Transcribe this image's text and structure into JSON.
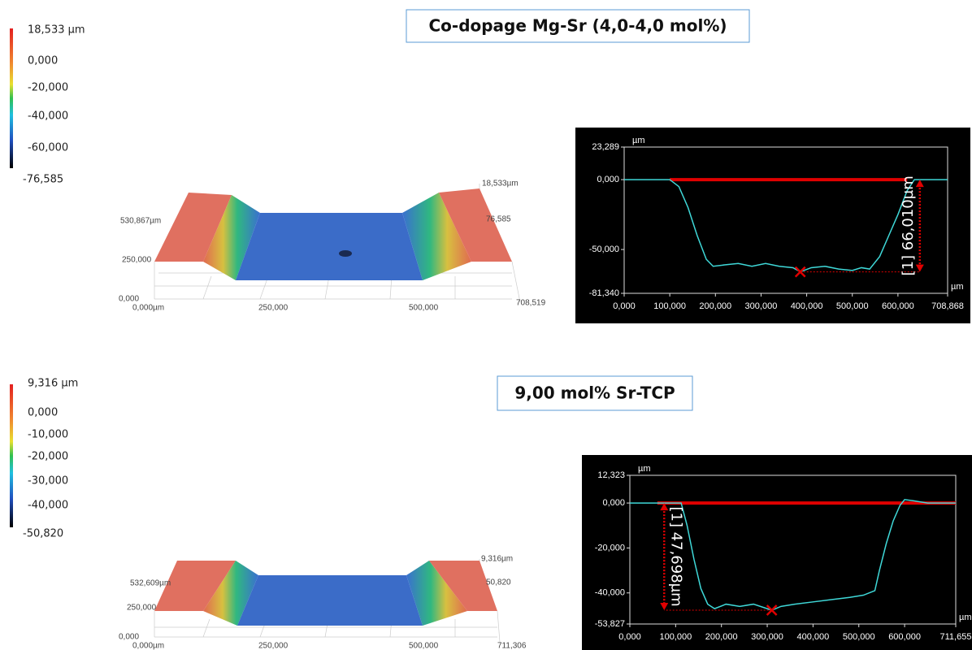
{
  "panels": [
    {
      "title": "Co-dopage Mg-Sr (4,0-4,0 mol%)",
      "colorbar": [
        "18,533 µm",
        "0,000",
        "-20,000",
        "-40,000",
        "-60,000",
        "-76,585"
      ],
      "surface": [
        "18,533µm",
        "76,585",
        "530,867µm",
        "250,000",
        "0,000",
        "0,000µm",
        "250,000",
        "500,000",
        "708,519"
      ]
    },
    {
      "title": "9,00 mol% Sr-TCP",
      "colorbar": [
        "9,316 µm",
        "0,000",
        "-10,000",
        "-20,000",
        "-30,000",
        "-40,000",
        "-50,820"
      ],
      "surface": [
        "9,316µm",
        "50,820",
        "532,609µm",
        "250,000",
        "0,000",
        "0,000µm",
        "250,000",
        "500,000",
        "711,306"
      ]
    }
  ],
  "chart_data": [
    {
      "type": "line",
      "x_unit": "µm",
      "y_unit": "µm",
      "x": [
        0,
        50,
        100,
        120,
        140,
        160,
        180,
        195,
        220,
        250,
        280,
        310,
        340,
        370,
        386,
        410,
        440,
        470,
        500,
        520,
        538,
        560,
        580,
        600,
        620,
        636,
        660,
        708.868
      ],
      "series": [
        {
          "color": "#3fd8d8",
          "values": [
            0,
            0,
            0,
            -5,
            -20,
            -40,
            -57,
            -62,
            -61,
            -60,
            -62,
            -60,
            -62,
            -63,
            -66,
            -63,
            -62,
            -64,
            -65,
            -63,
            -64,
            -55,
            -40,
            -25,
            -8,
            0,
            0,
            0
          ]
        }
      ],
      "xlim": [
        0,
        708.868
      ],
      "ylim": [
        -81.34,
        23.289
      ],
      "xticks": [
        {
          "value": 0,
          "label": "0,000"
        },
        {
          "value": 100,
          "label": "100,000"
        },
        {
          "value": 200,
          "label": "200,000"
        },
        {
          "value": 300,
          "label": "300,000"
        },
        {
          "value": 400,
          "label": "400,000"
        },
        {
          "value": 500,
          "label": "500,000"
        },
        {
          "value": 600,
          "label": "600,000"
        },
        {
          "value": 708.868,
          "label": "708,868"
        }
      ],
      "yticks": [
        {
          "value": 23.289,
          "label": "23,289"
        },
        {
          "value": 0,
          "label": "0,000"
        },
        {
          "value": -50,
          "label": "-50,000"
        },
        {
          "value": -81.34,
          "label": "-81,340"
        }
      ],
      "reference": {
        "x": [
          100,
          620
        ],
        "y": 0,
        "color": "#e00000"
      },
      "marker": {
        "x": 386,
        "y": -66
      },
      "measurement": {
        "x": 648,
        "value": 66.01,
        "label": "[1] 66,010µm"
      }
    },
    {
      "type": "line",
      "x_unit": "µm",
      "y_unit": "µm",
      "x": [
        0,
        60,
        112,
        125,
        140,
        155,
        170,
        185,
        210,
        240,
        270,
        300,
        310,
        330,
        360,
        400,
        440,
        480,
        510,
        535,
        545,
        560,
        575,
        590,
        600,
        620,
        650,
        711.655
      ],
      "series": [
        {
          "color": "#3fd8d8",
          "values": [
            0,
            0,
            0,
            -10,
            -25,
            -38,
            -45,
            -47,
            -45,
            -46,
            -45,
            -47,
            -47.7,
            -46,
            -45,
            -44,
            -43,
            -42,
            -41,
            -39,
            -30,
            -18,
            -8,
            -1,
            1.5,
            1,
            0,
            0
          ]
        }
      ],
      "xlim": [
        0,
        711.655
      ],
      "ylim": [
        -53.827,
        12.323
      ],
      "xticks": [
        {
          "value": 0,
          "label": "0,000"
        },
        {
          "value": 100,
          "label": "100,000"
        },
        {
          "value": 200,
          "label": "200,000"
        },
        {
          "value": 300,
          "label": "300,000"
        },
        {
          "value": 400,
          "label": "400,000"
        },
        {
          "value": 500,
          "label": "500,000"
        },
        {
          "value": 600,
          "label": "600,000"
        },
        {
          "value": 711.655,
          "label": "711,655"
        }
      ],
      "yticks": [
        {
          "value": 12.323,
          "label": "12,323"
        },
        {
          "value": 0,
          "label": "0,000"
        },
        {
          "value": -20,
          "label": "-20,000"
        },
        {
          "value": -40,
          "label": "-40,000"
        },
        {
          "value": -53.827,
          "label": "-53,827"
        }
      ],
      "reference": {
        "x": [
          60,
          711.655
        ],
        "y": 0,
        "color": "#e00000"
      },
      "marker": {
        "x": 310,
        "y": -47.7
      },
      "measurement": {
        "x": 75,
        "value": 47.698,
        "label": "[1] 47,698µm"
      }
    }
  ]
}
